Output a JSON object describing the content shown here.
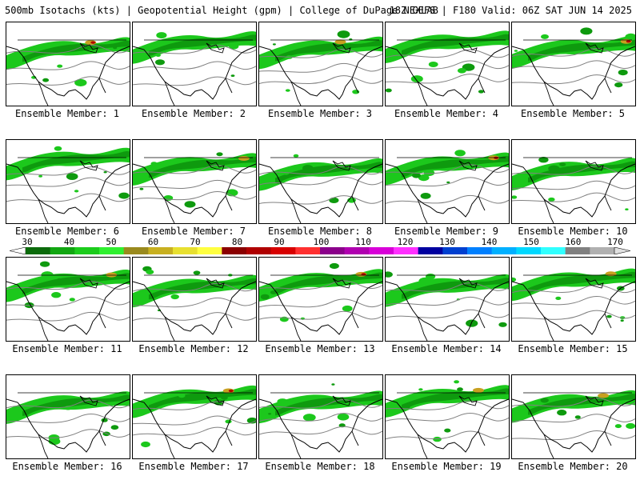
{
  "header": {
    "left": "500mb Isotachs (kts) | Geopotential Height (gpm) | College of DuPage NEXLAB",
    "right": "18Z GEFS | F180 Valid: 06Z SAT JUN 14 2025"
  },
  "members": [
    "Ensemble Member: 1",
    "Ensemble Member: 2",
    "Ensemble Member: 3",
    "Ensemble Member: 4",
    "Ensemble Member: 5",
    "Ensemble Member: 6",
    "Ensemble Member: 7",
    "Ensemble Member: 8",
    "Ensemble Member: 9",
    "Ensemble Member: 10",
    "Ensemble Member: 11",
    "Ensemble Member: 12",
    "Ensemble Member: 13",
    "Ensemble Member: 14",
    "Ensemble Member: 15",
    "Ensemble Member: 16",
    "Ensemble Member: 17",
    "Ensemble Member: 18",
    "Ensemble Member: 19",
    "Ensemble Member: 20"
  ],
  "colorbar": {
    "labels": [
      "30",
      "40",
      "50",
      "60",
      "70",
      "80",
      "90",
      "100",
      "110",
      "120",
      "130",
      "140",
      "150",
      "160",
      "170"
    ],
    "colors": [
      "#0b6b0b",
      "#11a611",
      "#1ccc1c",
      "#2ff02f",
      "#9a8a1e",
      "#c8b020",
      "#e8e030",
      "#ffff40",
      "#8b0000",
      "#b00000",
      "#d80000",
      "#ff3030",
      "#8b008b",
      "#b000b0",
      "#d800d8",
      "#ff30ff",
      "#0000a0",
      "#0040d0",
      "#0080ff",
      "#00b0ff",
      "#00d8ff",
      "#30ffff",
      "#808080",
      "#b0b0b0"
    ]
  },
  "colors": {
    "wind_light": "#1cc81c",
    "wind_mid": "#0e9a0e",
    "wind_strong": "#c8a020",
    "wind_max": "#b00000",
    "contour": "#808080",
    "land": "#000000"
  }
}
